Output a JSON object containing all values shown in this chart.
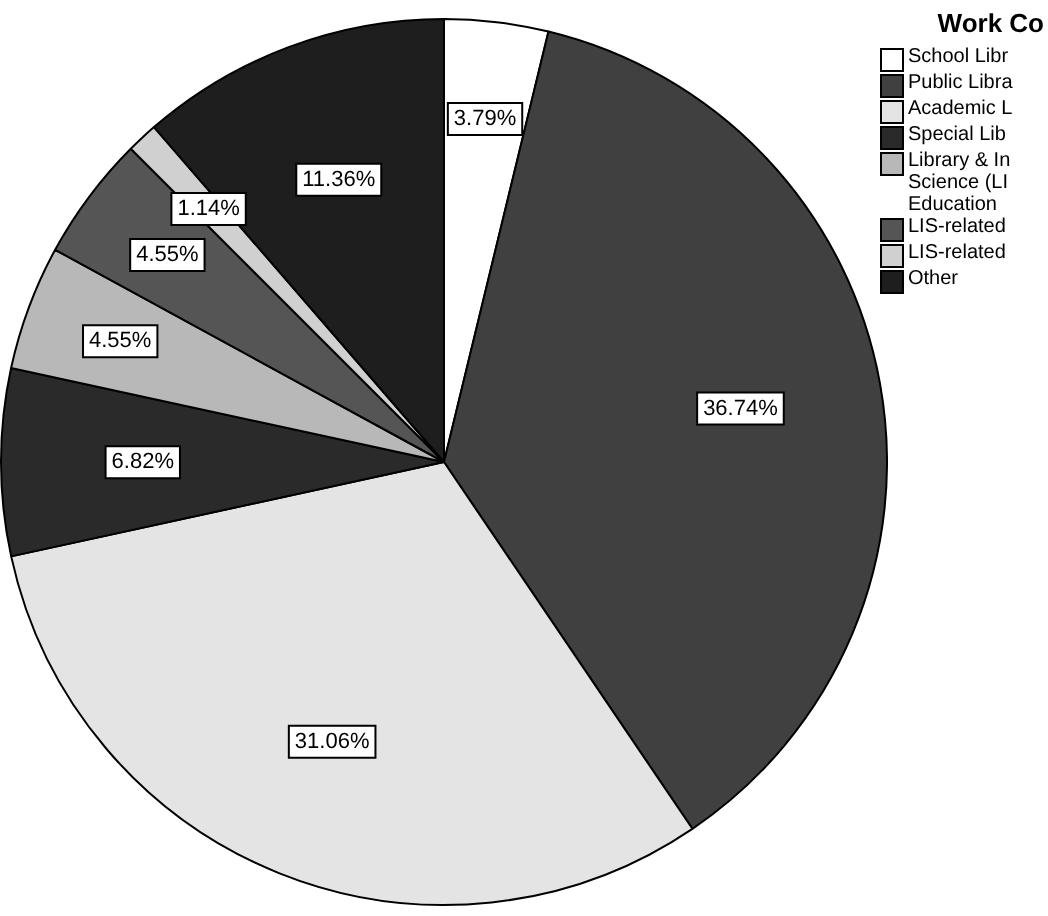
{
  "chart_data": {
    "type": "pie",
    "legend_title": "Work Co",
    "legend": "top right",
    "categories": [
      "School Libr",
      "Public Libra",
      "Academic L",
      "Special Lib",
      "Library & In Science (LI Education",
      "LIS-related",
      "LIS-related",
      "Other"
    ],
    "values": [
      3.79,
      36.74,
      31.06,
      6.82,
      4.55,
      4.55,
      1.14,
      11.36
    ],
    "value_labels": [
      "3.79%",
      "36.74%",
      "31.06%",
      "6.82%",
      "4.55%",
      "4.55%",
      "1.14%",
      "11.36%"
    ],
    "colors": [
      "#ffffff",
      "#404040",
      "#e4e4e4",
      "#2a2a2a",
      "#b8b8b8",
      "#555555",
      "#d0d0d0",
      "#1e1e1e"
    ]
  }
}
